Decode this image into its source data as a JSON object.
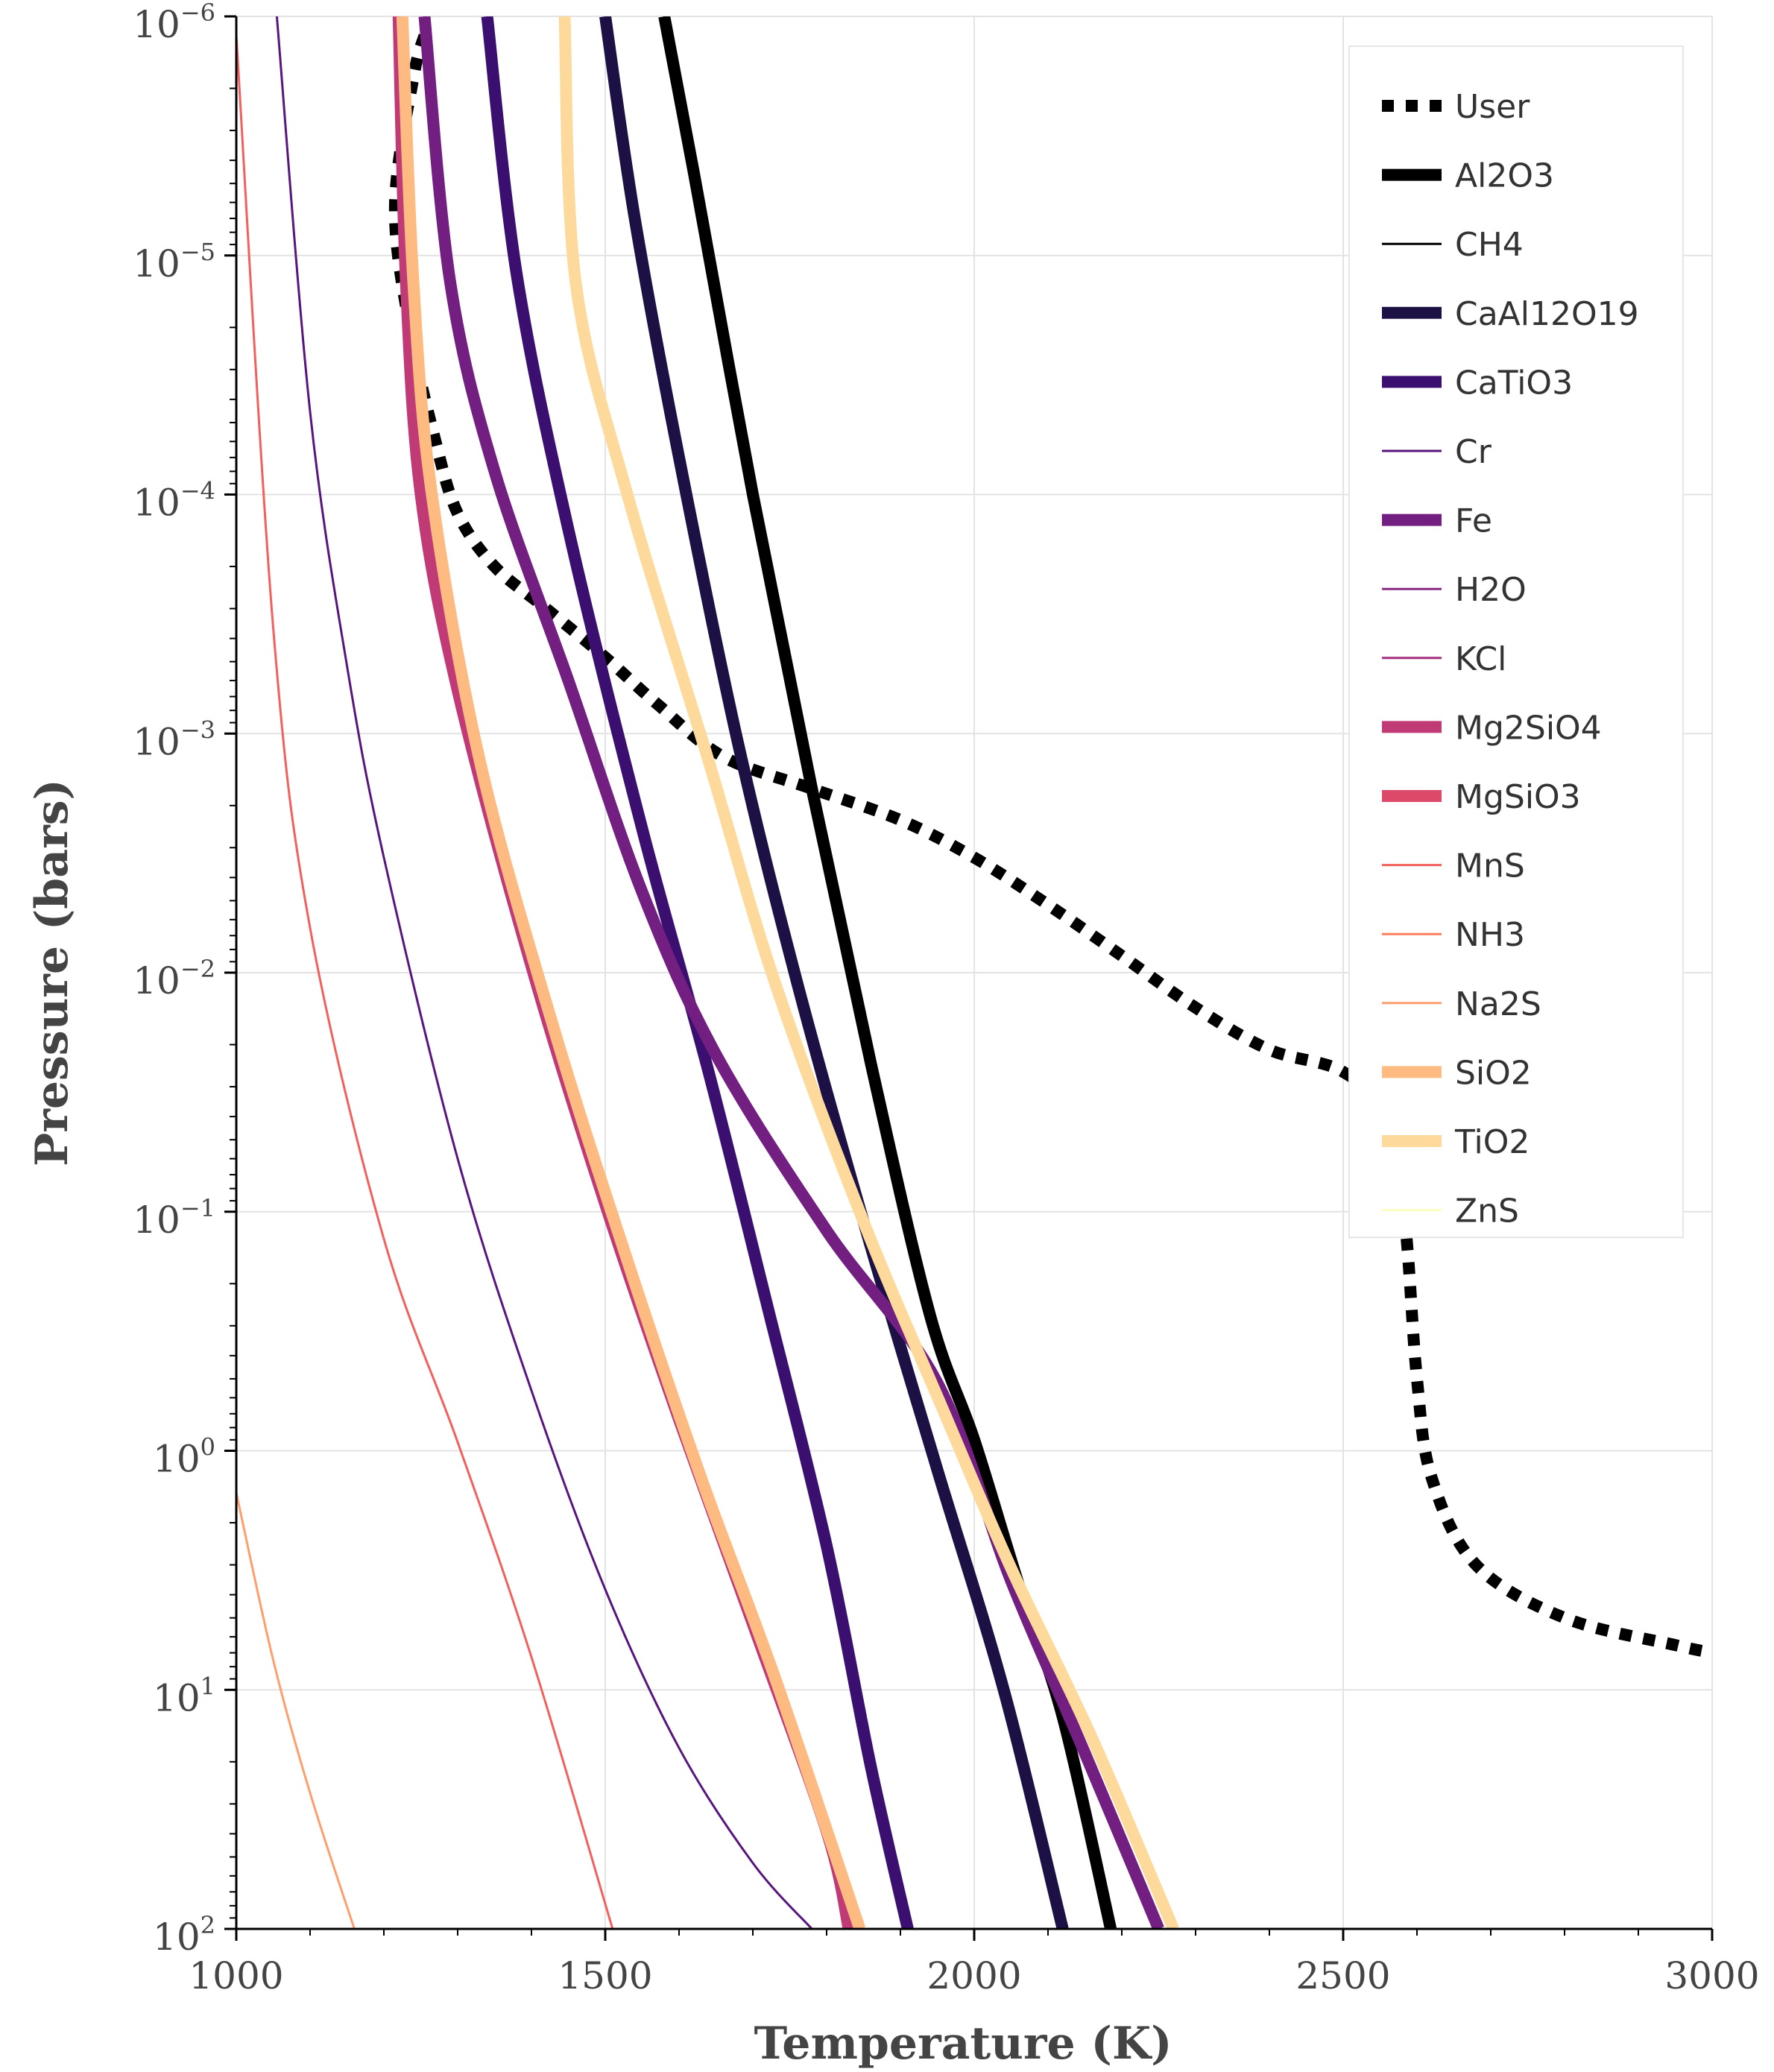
{
  "chart_data": {
    "type": "line",
    "title": "",
    "xlabel": "Temperature (K)",
    "ylabel": "Pressure (bars)",
    "xlim": [
      1000,
      3000
    ],
    "ylim": [
      1e-06,
      100
    ],
    "y_scale": "log",
    "y_inverted": true,
    "grid": true,
    "legend_position": "top-right",
    "x_ticks": [
      {
        "value": 1000,
        "label": "1000"
      },
      {
        "value": 1500,
        "label": "1500"
      },
      {
        "value": 2000,
        "label": "2000"
      },
      {
        "value": 2500,
        "label": "2500"
      },
      {
        "value": 3000,
        "label": "3000"
      }
    ],
    "y_ticks": [
      {
        "value": 1e-06,
        "base": "10",
        "exp": "−6"
      },
      {
        "value": 1e-05,
        "base": "10",
        "exp": "−5"
      },
      {
        "value": 0.0001,
        "base": "10",
        "exp": "−4"
      },
      {
        "value": 0.001,
        "base": "10",
        "exp": "−3"
      },
      {
        "value": 0.01,
        "base": "10",
        "exp": "−2"
      },
      {
        "value": 0.1,
        "base": "10",
        "exp": "−1"
      },
      {
        "value": 1,
        "base": "10",
        "exp": "0"
      },
      {
        "value": 10,
        "base": "10",
        "exp": "1"
      },
      {
        "value": 100,
        "base": "10",
        "exp": "2"
      }
    ],
    "series": [
      {
        "name": "User",
        "color": "#000000",
        "width": 16,
        "dash": true,
        "points": [
          [
            1255,
            1.2e-06
          ],
          [
            1240,
            1.8e-06
          ],
          [
            1215,
            6.2e-06
          ],
          [
            1235,
            2e-05
          ],
          [
            1270,
            6e-05
          ],
          [
            1300,
            0.00012
          ],
          [
            1350,
            0.0002
          ],
          [
            1420,
            0.0003
          ],
          [
            1500,
            0.00048
          ],
          [
            1570,
            0.00075
          ],
          [
            1660,
            0.00125
          ],
          [
            1780,
            0.0017
          ],
          [
            1900,
            0.0023
          ],
          [
            2000,
            0.0033
          ],
          [
            2100,
            0.0052
          ],
          [
            2200,
            0.0085
          ],
          [
            2300,
            0.014
          ],
          [
            2400,
            0.021
          ],
          [
            2500,
            0.026
          ],
          [
            2565,
            0.042
          ],
          [
            2585,
            0.12
          ],
          [
            2600,
            0.5
          ],
          [
            2620,
            1.3
          ],
          [
            2680,
            3
          ],
          [
            2800,
            5
          ],
          [
            2950,
            6.5
          ],
          [
            3000,
            7
          ]
        ]
      },
      {
        "name": "Al2O3",
        "color": "#000000",
        "width": 16,
        "points": [
          [
            1580,
            1e-06
          ],
          [
            1620,
            4.5e-06
          ],
          [
            1700,
            0.0001
          ],
          [
            1780,
            0.0017
          ],
          [
            1860,
            0.024
          ],
          [
            1940,
            0.27
          ],
          [
            2000,
            0.9
          ],
          [
            2060,
            3.6
          ],
          [
            2120,
            13
          ],
          [
            2185,
            100
          ]
        ]
      },
      {
        "name": "CH4",
        "color": "#000004",
        "width": 3,
        "points": []
      },
      {
        "name": "CaAl12O19",
        "color": "#1c1044",
        "width": 16,
        "points": [
          [
            1500,
            1e-06
          ],
          [
            1540,
            7e-06
          ],
          [
            1600,
            7e-05
          ],
          [
            1680,
            0.0011
          ],
          [
            1760,
            0.011
          ],
          [
            1850,
            0.11
          ],
          [
            1950,
            1.2
          ],
          [
            2040,
            10
          ],
          [
            2120,
            100
          ]
        ]
      },
      {
        "name": "CaTiO3",
        "color": "#3b0f70",
        "width": 16,
        "points": [
          [
            1340,
            1e-06
          ],
          [
            1380,
            1.2e-05
          ],
          [
            1450,
            0.00014
          ],
          [
            1550,
            0.0025
          ],
          [
            1640,
            0.026
          ],
          [
            1720,
            0.25
          ],
          [
            1800,
            2.5
          ],
          [
            1860,
            21
          ],
          [
            1910,
            100
          ]
        ]
      },
      {
        "name": "Cr",
        "color": "#57157e",
        "width": 3,
        "points": [
          [
            1055,
            1e-06
          ],
          [
            1100,
            4.5e-05
          ],
          [
            1150,
            0.00052
          ],
          [
            1200,
            0.0033
          ],
          [
            1300,
            0.06
          ],
          [
            1400,
            0.56
          ],
          [
            1500,
            3.8
          ],
          [
            1600,
            17.5
          ],
          [
            1700,
            53
          ],
          [
            1780,
            100
          ]
        ]
      },
      {
        "name": "Fe",
        "color": "#721f81",
        "width": 16,
        "points": [
          [
            1255,
            1e-06
          ],
          [
            1290,
            1.3e-05
          ],
          [
            1350,
            8e-05
          ],
          [
            1450,
            0.0006
          ],
          [
            1550,
            0.0046
          ],
          [
            1650,
            0.022
          ],
          [
            1800,
            0.12
          ],
          [
            1950,
            0.52
          ],
          [
            2050,
            3.5
          ],
          [
            2150,
            18.4
          ],
          [
            2250,
            100
          ]
        ]
      },
      {
        "name": "H2O",
        "color": "#8c2981",
        "width": 3,
        "points": []
      },
      {
        "name": "KCl",
        "color": "#a3307e",
        "width": 3,
        "points": []
      },
      {
        "name": "Mg2SiO4",
        "color": "#c03a76",
        "width": 16,
        "points": [
          [
            1220,
            1e-06
          ],
          [
            1230,
            1.3e-05
          ],
          [
            1250,
            0.0001
          ],
          [
            1300,
            0.00066
          ],
          [
            1400,
            0.0094
          ],
          [
            1500,
            0.093
          ],
          [
            1600,
            0.74
          ],
          [
            1700,
            5.3
          ],
          [
            1800,
            39
          ],
          [
            1830,
            100
          ]
        ]
      },
      {
        "name": "MgSiO3",
        "color": "#dd4968",
        "width": 16,
        "points": []
      },
      {
        "name": "MnS",
        "color": "#f1605d",
        "width": 3,
        "points": [
          [
            1000,
            1.2e-06
          ],
          [
            1050,
            0.00036
          ],
          [
            1100,
            0.0065
          ],
          [
            1200,
            0.13
          ],
          [
            1300,
            0.92
          ],
          [
            1400,
            7.3
          ],
          [
            1510,
            100
          ]
        ]
      },
      {
        "name": "NH3",
        "color": "#fa7f5e",
        "width": 3,
        "points": []
      },
      {
        "name": "Na2S",
        "color": "#fd9f6c",
        "width": 3,
        "points": [
          [
            1000,
            1.5
          ],
          [
            1050,
            7.5
          ],
          [
            1100,
            27
          ],
          [
            1160,
            100
          ]
        ]
      },
      {
        "name": "SiO2",
        "color": "#febb81",
        "width": 16,
        "points": [
          [
            1225,
            1e-06
          ],
          [
            1240,
            1.3e-05
          ],
          [
            1265,
            0.0001
          ],
          [
            1330,
            0.0013
          ],
          [
            1430,
            0.017
          ],
          [
            1530,
            0.16
          ],
          [
            1630,
            1.3
          ],
          [
            1730,
            8.9
          ],
          [
            1845,
            100
          ]
        ]
      },
      {
        "name": "TiO2",
        "color": "#fdda9c",
        "width": 16,
        "points": [
          [
            1445,
            1e-06
          ],
          [
            1460,
            1.3e-05
          ],
          [
            1530,
            0.0001
          ],
          [
            1640,
            0.0013
          ],
          [
            1730,
            0.011
          ],
          [
            1850,
            0.11
          ],
          [
            1960,
            0.7
          ],
          [
            2050,
            3.1
          ],
          [
            2160,
            16
          ],
          [
            2270,
            100
          ]
        ]
      },
      {
        "name": "ZnS",
        "color": "#fcfdbf",
        "width": 3,
        "points": []
      }
    ]
  }
}
